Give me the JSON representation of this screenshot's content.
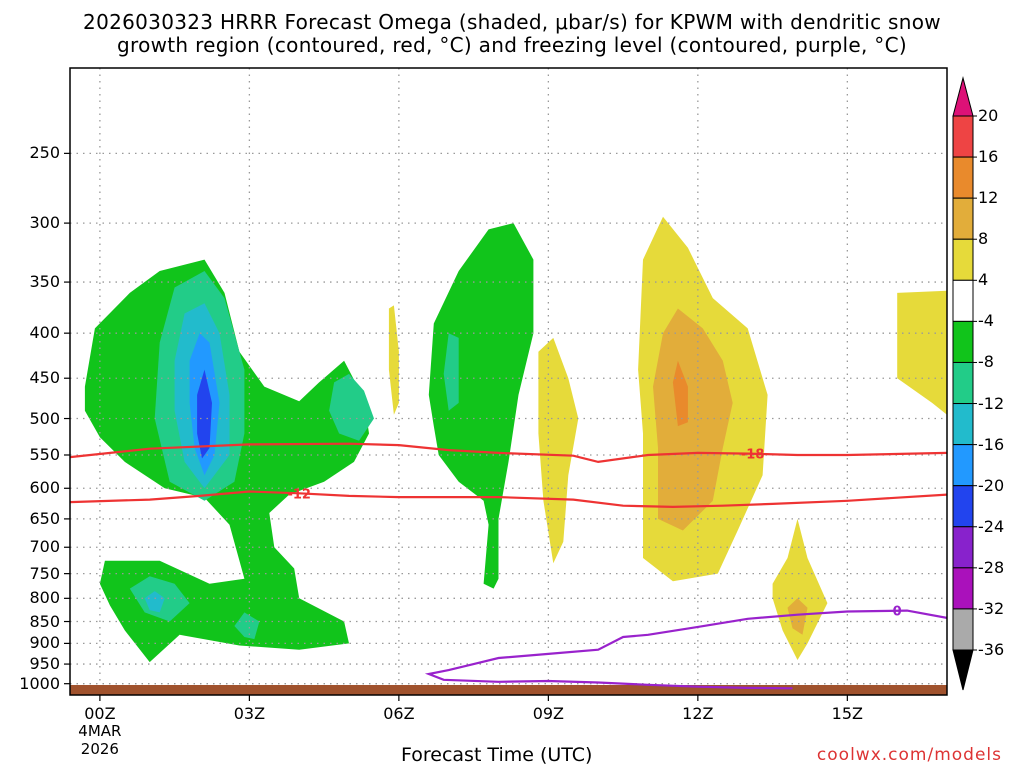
{
  "title_line1": "2026030323 HRRR Forecast Omega (shaded, μbar/s) for KPWM with dendritic snow",
  "title_line2": "growth region (contoured, red, °C) and freezing level (contoured, purple, °C)",
  "credit": "coolwx.com/models",
  "colors": {
    "terrain": "#a0522d",
    "grid": "#999999",
    "dgz_contour": "#ee3333",
    "freezing_contour": "#9922cc"
  },
  "chart_data": {
    "type": "heatmap",
    "title": "2026030323 HRRR Forecast Omega (shaded, μbar/s) for KPWM with dendritic snow growth region (contoured, red, °C) and freezing level (contoured, purple, °C)",
    "xlabel": "Forecast Time (UTC)",
    "ylabel": "",
    "x_unit": "forecast hour from 2026-03-04 00Z",
    "xlim": [
      -0.6,
      17
    ],
    "ylim_hpa": [
      1030,
      200
    ],
    "y_scale": "log-pressure",
    "grid": true,
    "x_ticks": [
      {
        "x": 0,
        "label": "00Z",
        "sub": [
          "4MAR",
          "2026"
        ]
      },
      {
        "x": 3,
        "label": "03Z"
      },
      {
        "x": 6,
        "label": "06Z"
      },
      {
        "x": 9,
        "label": "09Z"
      },
      {
        "x": 12,
        "label": "12Z"
      },
      {
        "x": 15,
        "label": "15Z"
      }
    ],
    "y_ticks": [
      250,
      300,
      350,
      400,
      450,
      500,
      550,
      600,
      650,
      700,
      750,
      800,
      850,
      900,
      950,
      1000
    ],
    "colorbar": {
      "levels": [
        -36,
        -32,
        -28,
        -24,
        -20,
        -16,
        -12,
        -8,
        -4,
        4,
        8,
        12,
        16,
        20
      ],
      "labels": [
        "20",
        "16",
        "12",
        "8",
        "4",
        "-4",
        "-8",
        "-12",
        "-16",
        "-20",
        "-24",
        "-28",
        "-32",
        "-36"
      ],
      "bands": [
        {
          "lo": 20,
          "hi": 99,
          "color": "#dd1177"
        },
        {
          "lo": 16,
          "hi": 20,
          "color": "#ee4444"
        },
        {
          "lo": 12,
          "hi": 16,
          "color": "#e98a2c"
        },
        {
          "lo": 8,
          "hi": 12,
          "color": "#e2ad3a"
        },
        {
          "lo": 4,
          "hi": 8,
          "color": "#e6da3a"
        },
        {
          "lo": -4,
          "hi": 4,
          "color": "#ffffff"
        },
        {
          "lo": -8,
          "hi": -4,
          "color": "#11c41b"
        },
        {
          "lo": -12,
          "hi": -8,
          "color": "#22cc88"
        },
        {
          "lo": -16,
          "hi": -12,
          "color": "#22bbcc"
        },
        {
          "lo": -20,
          "hi": -16,
          "color": "#2299ff"
        },
        {
          "lo": -24,
          "hi": -20,
          "color": "#2244ee"
        },
        {
          "lo": -28,
          "hi": -24,
          "color": "#8822cc"
        },
        {
          "lo": -32,
          "hi": -28,
          "color": "#aa11bb"
        },
        {
          "lo": -36,
          "hi": -32,
          "color": "#aaaaaa"
        },
        {
          "lo": -99,
          "hi": -36,
          "color": "#000000"
        }
      ]
    },
    "omega_regions": [
      {
        "color": "#11c41b",
        "value_band": "-8 to -4",
        "pts": [
          [
            -0.3,
            460
          ],
          [
            -0.1,
            395
          ],
          [
            0.6,
            360
          ],
          [
            1.2,
            340
          ],
          [
            2.1,
            330
          ],
          [
            2.5,
            360
          ],
          [
            2.8,
            420
          ],
          [
            3.3,
            460
          ],
          [
            4.0,
            478
          ],
          [
            4.4,
            455
          ],
          [
            4.9,
            430
          ],
          [
            5.3,
            475
          ],
          [
            5.4,
            520
          ],
          [
            5.1,
            560
          ],
          [
            4.5,
            590
          ],
          [
            3.8,
            610
          ],
          [
            3.4,
            640
          ],
          [
            3.5,
            700
          ],
          [
            3.9,
            740
          ],
          [
            4.0,
            800
          ],
          [
            4.9,
            850
          ],
          [
            5.0,
            900
          ],
          [
            4.0,
            915
          ],
          [
            2.8,
            905
          ],
          [
            1.6,
            880
          ],
          [
            1.0,
            945
          ],
          [
            0.5,
            870
          ],
          [
            0.2,
            815
          ],
          [
            0.0,
            770
          ],
          [
            0.1,
            725
          ],
          [
            1.2,
            725
          ],
          [
            2.2,
            770
          ],
          [
            2.9,
            760
          ],
          [
            2.6,
            660
          ],
          [
            2.1,
            615
          ],
          [
            1.3,
            600
          ],
          [
            0.5,
            560
          ],
          [
            0.0,
            525
          ],
          [
            -0.3,
            490
          ]
        ]
      },
      {
        "color": "#11c41b",
        "value_band": "-8 to -4",
        "pts": [
          [
            6.6,
            470
          ],
          [
            6.7,
            390
          ],
          [
            7.2,
            340
          ],
          [
            7.8,
            305
          ],
          [
            8.3,
            300
          ],
          [
            8.7,
            330
          ],
          [
            8.7,
            400
          ],
          [
            8.4,
            470
          ],
          [
            8.2,
            560
          ],
          [
            8.0,
            650
          ],
          [
            8.0,
            760
          ],
          [
            7.9,
            780
          ],
          [
            7.7,
            770
          ],
          [
            7.8,
            660
          ],
          [
            7.7,
            620
          ],
          [
            7.2,
            590
          ],
          [
            6.8,
            550
          ],
          [
            6.7,
            510
          ]
        ]
      },
      {
        "color": "#22cc88",
        "value_band": "-12 to -8",
        "pts": [
          [
            1.2,
            410
          ],
          [
            1.5,
            355
          ],
          [
            2.1,
            340
          ],
          [
            2.5,
            365
          ],
          [
            2.9,
            440
          ],
          [
            2.9,
            520
          ],
          [
            2.7,
            590
          ],
          [
            2.1,
            620
          ],
          [
            1.4,
            590
          ],
          [
            1.1,
            500
          ]
        ]
      },
      {
        "color": "#22cc88",
        "value_band": "-12 to -8",
        "pts": [
          [
            4.6,
            490
          ],
          [
            4.7,
            455
          ],
          [
            5.0,
            445
          ],
          [
            5.3,
            465
          ],
          [
            5.5,
            500
          ],
          [
            5.2,
            530
          ],
          [
            4.8,
            520
          ]
        ]
      },
      {
        "color": "#22cc88",
        "value_band": "-12 to -8",
        "pts": [
          [
            0.6,
            780
          ],
          [
            1.0,
            755
          ],
          [
            1.5,
            770
          ],
          [
            1.8,
            810
          ],
          [
            1.4,
            850
          ],
          [
            0.9,
            830
          ]
        ]
      },
      {
        "color": "#22cc88",
        "value_band": "-12 to -8",
        "pts": [
          [
            2.7,
            860
          ],
          [
            2.9,
            830
          ],
          [
            3.2,
            850
          ],
          [
            3.1,
            890
          ],
          [
            2.9,
            885
          ]
        ]
      },
      {
        "color": "#22cc88",
        "value_band": "-12 to -8",
        "pts": [
          [
            6.9,
            445
          ],
          [
            7.0,
            400
          ],
          [
            7.2,
            405
          ],
          [
            7.2,
            480
          ],
          [
            7.0,
            490
          ]
        ]
      },
      {
        "color": "#22bbcc",
        "value_band": "-16 to -12",
        "pts": [
          [
            1.5,
            430
          ],
          [
            1.7,
            380
          ],
          [
            2.1,
            370
          ],
          [
            2.4,
            400
          ],
          [
            2.6,
            470
          ],
          [
            2.6,
            550
          ],
          [
            2.1,
            600
          ],
          [
            1.7,
            560
          ],
          [
            1.5,
            490
          ]
        ]
      },
      {
        "color": "#22bbcc",
        "value_band": "-16 to -12",
        "pts": [
          [
            0.9,
            800
          ],
          [
            1.1,
            785
          ],
          [
            1.3,
            800
          ],
          [
            1.2,
            830
          ],
          [
            1.0,
            825
          ]
        ]
      },
      {
        "color": "#2299ff",
        "value_band": "-20 to -16",
        "pts": [
          [
            1.8,
            430
          ],
          [
            2.0,
            400
          ],
          [
            2.2,
            410
          ],
          [
            2.4,
            480
          ],
          [
            2.3,
            550
          ],
          [
            2.1,
            580
          ],
          [
            1.9,
            540
          ],
          [
            1.8,
            480
          ]
        ]
      },
      {
        "color": "#2244ee",
        "value_band": "-24 to -20",
        "pts": [
          [
            1.95,
            470
          ],
          [
            2.1,
            440
          ],
          [
            2.25,
            480
          ],
          [
            2.2,
            540
          ],
          [
            2.05,
            555
          ],
          [
            1.95,
            520
          ]
        ]
      },
      {
        "color": "#e6da3a",
        "value_band": "4 to 8",
        "pts": [
          [
            5.8,
            375
          ],
          [
            5.9,
            372
          ],
          [
            6.0,
            420
          ],
          [
            6.0,
            480
          ],
          [
            5.9,
            495
          ],
          [
            5.8,
            440
          ]
        ]
      },
      {
        "color": "#e6da3a",
        "value_band": "4 to 8",
        "pts": [
          [
            8.8,
            420
          ],
          [
            9.1,
            405
          ],
          [
            9.4,
            450
          ],
          [
            9.6,
            500
          ],
          [
            9.4,
            580
          ],
          [
            9.3,
            690
          ],
          [
            9.1,
            730
          ],
          [
            8.9,
            620
          ],
          [
            8.8,
            520
          ]
        ]
      },
      {
        "color": "#e6da3a",
        "value_band": "4 to 8",
        "pts": [
          [
            10.9,
            330
          ],
          [
            11.3,
            295
          ],
          [
            11.8,
            320
          ],
          [
            12.3,
            365
          ],
          [
            13.0,
            395
          ],
          [
            13.4,
            470
          ],
          [
            13.3,
            580
          ],
          [
            12.8,
            670
          ],
          [
            12.4,
            750
          ],
          [
            11.5,
            765
          ],
          [
            10.9,
            720
          ],
          [
            10.9,
            520
          ],
          [
            10.8,
            440
          ]
        ]
      },
      {
        "color": "#e6da3a",
        "value_band": "4 to 8",
        "pts": [
          [
            13.5,
            770
          ],
          [
            13.8,
            720
          ],
          [
            14.0,
            650
          ],
          [
            14.2,
            720
          ],
          [
            14.6,
            810
          ],
          [
            14.2,
            900
          ],
          [
            14.0,
            940
          ],
          [
            13.7,
            870
          ],
          [
            13.5,
            800
          ]
        ]
      },
      {
        "color": "#e6da3a",
        "value_band": "4 to 8",
        "pts": [
          [
            16.0,
            360
          ],
          [
            17.0,
            358
          ],
          [
            17.0,
            495
          ],
          [
            16.7,
            480
          ],
          [
            16.0,
            450
          ]
        ]
      },
      {
        "color": "#e2ad3a",
        "value_band": "8 to 12",
        "pts": [
          [
            11.3,
            400
          ],
          [
            11.6,
            375
          ],
          [
            12.1,
            395
          ],
          [
            12.5,
            430
          ],
          [
            12.7,
            480
          ],
          [
            12.5,
            540
          ],
          [
            12.3,
            620
          ],
          [
            11.7,
            670
          ],
          [
            11.2,
            650
          ],
          [
            11.2,
            540
          ],
          [
            11.1,
            460
          ]
        ]
      },
      {
        "color": "#e2ad3a",
        "value_band": "8 to 12",
        "pts": [
          [
            13.8,
            820
          ],
          [
            14.0,
            800
          ],
          [
            14.2,
            820
          ],
          [
            14.1,
            880
          ],
          [
            13.9,
            865
          ]
        ]
      },
      {
        "color": "#e98a2c",
        "value_band": "12 to 16",
        "pts": [
          [
            11.5,
            455
          ],
          [
            11.6,
            430
          ],
          [
            11.8,
            460
          ],
          [
            11.8,
            505
          ],
          [
            11.6,
            510
          ]
        ]
      }
    ],
    "contours": [
      {
        "label": "-18",
        "color": "#ee3333",
        "label_x": 13.1,
        "pts": [
          [
            -0.6,
            553
          ],
          [
            1.0,
            541
          ],
          [
            3.0,
            535
          ],
          [
            5.0,
            534
          ],
          [
            6.0,
            536
          ],
          [
            7.0,
            543
          ],
          [
            8.0,
            547
          ],
          [
            9.5,
            551
          ],
          [
            10.0,
            560
          ],
          [
            11.0,
            550
          ],
          [
            12.0,
            547
          ],
          [
            13.0,
            548
          ],
          [
            14.0,
            550
          ],
          [
            15.0,
            550
          ],
          [
            17.0,
            547
          ]
        ]
      },
      {
        "label": "-12",
        "color": "#ee3333",
        "label_x": 4.0,
        "pts": [
          [
            -0.6,
            622
          ],
          [
            1.0,
            618
          ],
          [
            2.0,
            612
          ],
          [
            3.0,
            605
          ],
          [
            4.0,
            608
          ],
          [
            5.0,
            612
          ],
          [
            6.0,
            614
          ],
          [
            8.0,
            614
          ],
          [
            9.5,
            618
          ],
          [
            10.5,
            628
          ],
          [
            11.5,
            630
          ],
          [
            12.5,
            628
          ],
          [
            13.5,
            625
          ],
          [
            15.0,
            620
          ],
          [
            17.0,
            610
          ]
        ]
      },
      {
        "label": "0",
        "color": "#9922cc",
        "label_x": 16.0,
        "pts": [
          [
            17.0,
            842
          ],
          [
            16.2,
            826
          ],
          [
            15.0,
            828
          ],
          [
            14.0,
            835
          ],
          [
            13.0,
            844
          ],
          [
            12.0,
            862
          ],
          [
            11.0,
            880
          ],
          [
            10.5,
            885
          ],
          [
            10.0,
            915
          ],
          [
            9.0,
            925
          ],
          [
            8.0,
            935
          ],
          [
            7.5,
            950
          ],
          [
            7.0,
            965
          ],
          [
            6.6,
            975
          ],
          [
            6.9,
            990
          ],
          [
            8.0,
            995
          ],
          [
            9.0,
            993
          ],
          [
            10.0,
            997
          ],
          [
            11.0,
            1003
          ],
          [
            12.0,
            1008
          ],
          [
            13.0,
            1011
          ],
          [
            13.9,
            1012
          ]
        ]
      }
    ]
  }
}
